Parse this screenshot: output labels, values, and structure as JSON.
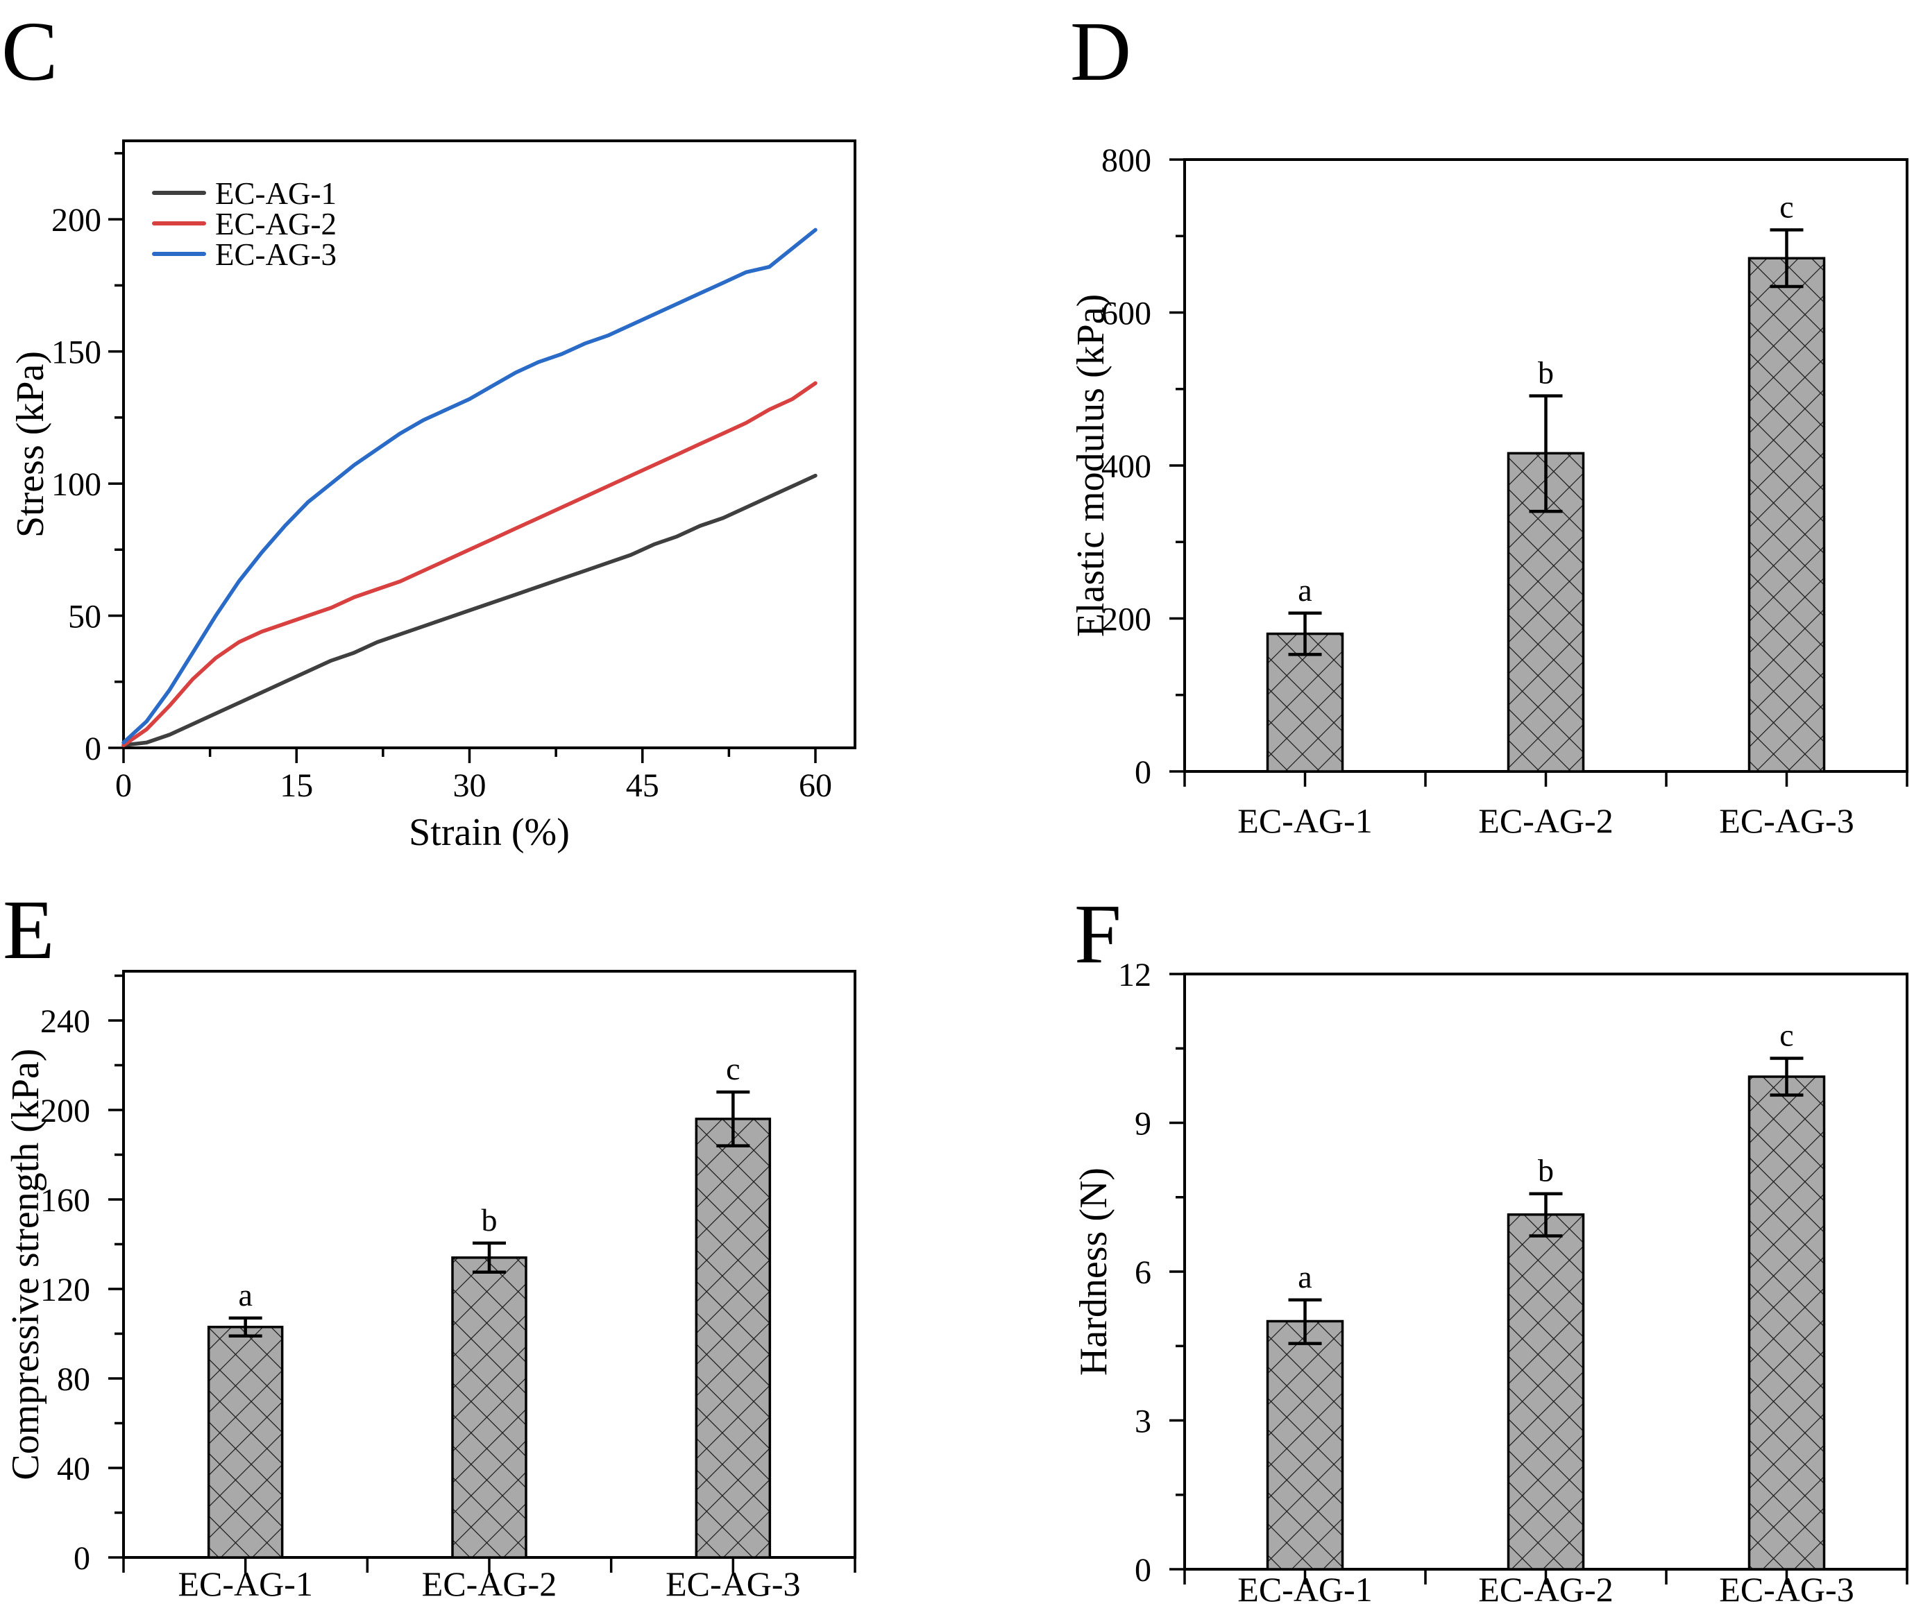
{
  "figure": {
    "background": "#ffffff",
    "text_color": "#000000"
  },
  "panels": {
    "c": {
      "letter": "C"
    },
    "d": {
      "letter": "D"
    },
    "e": {
      "letter": "E"
    },
    "f": {
      "letter": "F"
    }
  },
  "chart_data": [
    {
      "panel": "C",
      "type": "line",
      "title": "",
      "xlabel": "Strain (%)",
      "ylabel": "Stress (kPa)",
      "xlim": [
        0,
        63.4
      ],
      "ylim": [
        0,
        229.7
      ],
      "xticks": [
        0,
        15,
        30,
        45,
        60
      ],
      "xminorticks": [
        7.5,
        22.5,
        37.5,
        52.5
      ],
      "yticks": [
        0,
        50,
        100,
        150,
        200
      ],
      "yminorticks": [
        25,
        75,
        125,
        175,
        225
      ],
      "grid": false,
      "legend_position": "inside-top-left",
      "x": [
        0,
        2,
        4,
        6,
        8,
        10,
        12,
        14,
        16,
        18,
        20,
        22,
        24,
        26,
        28,
        30,
        32,
        34,
        36,
        38,
        40,
        42,
        44,
        46,
        48,
        50,
        52,
        54,
        56,
        58,
        60
      ],
      "series": [
        {
          "name": "EC-AG-1",
          "color": "#3f3f3f",
          "values": [
            1,
            2,
            5,
            9,
            13,
            17,
            21,
            25,
            29,
            33,
            36,
            40,
            43,
            46,
            49,
            52,
            55,
            58,
            61,
            64,
            67,
            70,
            73,
            77,
            80,
            84,
            87,
            91,
            95,
            99,
            103
          ]
        },
        {
          "name": "EC-AG-2",
          "color": "#d94141",
          "values": [
            1,
            7,
            16,
            26,
            34,
            40,
            44,
            47,
            50,
            53,
            57,
            60,
            63,
            67,
            71,
            75,
            79,
            83,
            87,
            91,
            95,
            99,
            103,
            107,
            111,
            115,
            119,
            123,
            128,
            132,
            138
          ]
        },
        {
          "name": "EC-AG-3",
          "color": "#2b6bc8",
          "values": [
            2,
            10,
            22,
            36,
            50,
            63,
            74,
            84,
            93,
            100,
            107,
            113,
            119,
            124,
            128,
            132,
            137,
            142,
            146,
            149,
            153,
            156,
            160,
            164,
            168,
            172,
            176,
            180,
            182,
            189,
            196
          ]
        }
      ]
    },
    {
      "panel": "D",
      "type": "bar",
      "title": "",
      "ylabel": "Elastic modulus (kPa)",
      "categories": [
        "EC-AG-1",
        "EC-AG-2",
        "EC-AG-3"
      ],
      "values": [
        180,
        416,
        671
      ],
      "error_plus": [
        27,
        75,
        37
      ],
      "error_minus": [
        27,
        76,
        37
      ],
      "sig_letters": [
        "a",
        "b",
        "c"
      ],
      "ylim": [
        0,
        800
      ],
      "yticks": [
        0,
        200,
        400,
        600,
        800
      ],
      "yminorticks": [
        100,
        300,
        500,
        700
      ],
      "grid": false,
      "bar_fill": "#a9a9a9",
      "bar_hatch": "diagonal-crosshatch",
      "bar_edge": "#000000"
    },
    {
      "panel": "E",
      "type": "bar",
      "title": "",
      "ylabel": "Compressive strength (kPa)",
      "categories": [
        "EC-AG-1",
        "EC-AG-2",
        "EC-AG-3"
      ],
      "values": [
        103,
        134,
        196
      ],
      "error_plus": [
        4,
        6.5,
        12
      ],
      "error_minus": [
        4,
        6.5,
        12
      ],
      "sig_letters": [
        "a",
        "b",
        "c"
      ],
      "ylim": [
        0,
        262
      ],
      "yticks": [
        0,
        40,
        80,
        120,
        160,
        200,
        240
      ],
      "yminorticks": [
        20,
        60,
        100,
        140,
        180,
        220,
        260
      ],
      "grid": false,
      "bar_fill": "#a9a9a9",
      "bar_hatch": "diagonal-crosshatch",
      "bar_edge": "#000000"
    },
    {
      "panel": "F",
      "type": "bar",
      "title": "",
      "ylabel": "Hardness (N)",
      "categories": [
        "EC-AG-1",
        "EC-AG-2",
        "EC-AG-3"
      ],
      "values": [
        5.0,
        7.15,
        9.93
      ],
      "error_plus": [
        0.43,
        0.42,
        0.37
      ],
      "error_minus": [
        0.45,
        0.43,
        0.37
      ],
      "sig_letters": [
        "a",
        "b",
        "c"
      ],
      "ylim": [
        0,
        12
      ],
      "yticks": [
        0,
        3,
        6,
        9,
        12
      ],
      "yminorticks": [
        1.5,
        4.5,
        7.5,
        10.5
      ],
      "grid": false,
      "bar_fill": "#a9a9a9",
      "bar_hatch": "diagonal-crosshatch",
      "bar_edge": "#000000"
    }
  ]
}
